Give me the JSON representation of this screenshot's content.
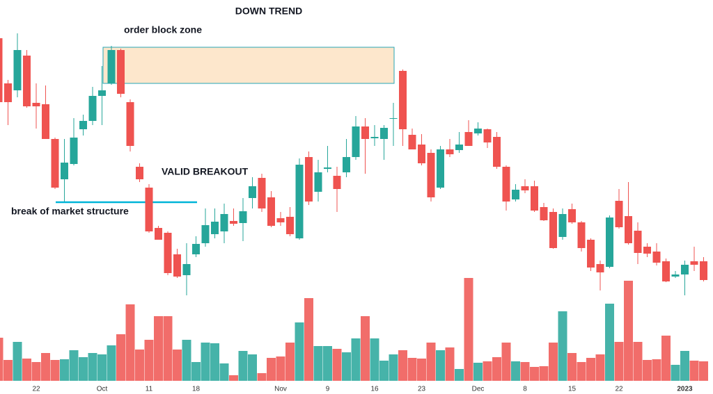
{
  "chart_data": {
    "type": "candlestick",
    "annotations": {
      "title": "DOWN TREND",
      "zone_label": "order block zone",
      "breakout_label": "VALID BREAKOUT",
      "structure_label": "break of market structure"
    },
    "zone": {
      "top": 432,
      "bottom": 380
    },
    "structure_level": 209,
    "categories": [
      null,
      null,
      null,
      null,
      "22",
      null,
      null,
      null,
      null,
      null,
      null,
      "Oct",
      null,
      null,
      null,
      null,
      "11",
      null,
      null,
      null,
      null,
      "18",
      null,
      null,
      null,
      null,
      null,
      null,
      null,
      null,
      "Nov",
      null,
      null,
      null,
      null,
      "9",
      null,
      null,
      null,
      null,
      "16",
      null,
      null,
      null,
      null,
      "23",
      null,
      null,
      null,
      null,
      null,
      "Dec",
      null,
      null,
      null,
      null,
      "8",
      null,
      null,
      null,
      null,
      "15",
      null,
      null,
      null,
      null,
      "22",
      null,
      null,
      null,
      null,
      null,
      null,
      "2023",
      null,
      null
    ],
    "open": [
      445,
      380,
      370,
      420,
      352,
      350,
      300,
      242,
      264,
      314,
      326,
      362,
      380,
      428,
      353,
      260,
      230,
      172,
      165,
      134,
      104,
      134,
      150,
      163,
      167,
      182,
      179,
      215,
      244,
      216,
      186,
      188,
      157,
      274,
      224,
      257,
      247,
      252,
      274,
      318,
      301,
      300,
      329,
      398,
      306,
      292,
      280,
      230,
      285,
      284,
      310,
      308,
      314,
      303,
      260,
      213,
      232,
      232,
      202,
      195,
      159,
      199,
      180,
      155,
      120,
      116,
      211,
      189,
      168,
      145,
      138,
      124,
      102,
      105,
      124,
      124
    ],
    "high": [
      452,
      385,
      452,
      428,
      380,
      377,
      302,
      300,
      330,
      335,
      375,
      405,
      434,
      430,
      357,
      265,
      235,
      175,
      167,
      142,
      150,
      160,
      200,
      200,
      207,
      200,
      215,
      245,
      250,
      225,
      195,
      202,
      272,
      282,
      270,
      290,
      260,
      300,
      333,
      330,
      320,
      320,
      352,
      400,
      315,
      307,
      285,
      290,
      300,
      310,
      327,
      324,
      315,
      310,
      262,
      235,
      242,
      240,
      208,
      200,
      200,
      207,
      182,
      157,
      125,
      190,
      228,
      238,
      180,
      150,
      150,
      128,
      110,
      125,
      145,
      130
    ],
    "low": [
      340,
      320,
      360,
      345,
      315,
      300,
      228,
      210,
      262,
      305,
      320,
      320,
      378,
      360,
      282,
      238,
      165,
      155,
      104,
      100,
      75,
      130,
      145,
      157,
      150,
      175,
      153,
      200,
      195,
      173,
      175,
      160,
      155,
      205,
      210,
      252,
      195,
      245,
      270,
      250,
      290,
      270,
      290,
      290,
      285,
      262,
      210,
      228,
      274,
      280,
      290,
      305,
      287,
      257,
      197,
      210,
      222,
      195,
      182,
      142,
      155,
      178,
      138,
      110,
      82,
      114,
      171,
      148,
      120,
      130,
      118,
      94,
      100,
      75,
      110,
      95
    ],
    "close": [
      353,
      353,
      428,
      347,
      347,
      300,
      230,
      266,
      302,
      326,
      362,
      370,
      428,
      365,
      290,
      242,
      167,
      155,
      107,
      102,
      120,
      149,
      176,
      181,
      192,
      178,
      196,
      232,
      200,
      175,
      180,
      163,
      263,
      210,
      252,
      259,
      228,
      274,
      318,
      300,
      303,
      316,
      330,
      314,
      285,
      265,
      216,
      285,
      278,
      292,
      290,
      315,
      295,
      260,
      210,
      227,
      226,
      197,
      183,
      143,
      192,
      180,
      143,
      115,
      108,
      187,
      173,
      150,
      136,
      135,
      122,
      95,
      105,
      119,
      119,
      97
    ],
    "volume": [
      62,
      30,
      56,
      32,
      27,
      40,
      30,
      31,
      44,
      34,
      40,
      38,
      51,
      67,
      110,
      45,
      59,
      93,
      93,
      45,
      59,
      27,
      55,
      54,
      25,
      8,
      43,
      38,
      11,
      33,
      35,
      55,
      84,
      119,
      50,
      50,
      46,
      41,
      61,
      93,
      61,
      29,
      38,
      44,
      33,
      32,
      55,
      44,
      48,
      17,
      148,
      26,
      28,
      34,
      55,
      28,
      27,
      20,
      21,
      55,
      100,
      40,
      27,
      33,
      38,
      111,
      56,
      144,
      56,
      30,
      31,
      65,
      23,
      43,
      29,
      28
    ],
    "ylim": [
      60,
      500
    ],
    "volume_ylim": [
      0,
      150
    ],
    "up_color": "#26a69a",
    "down_color": "#ef5350",
    "zone_color": "#fde7cc",
    "zone_border": "#26a6b5",
    "line_color": "#00b4d8"
  }
}
